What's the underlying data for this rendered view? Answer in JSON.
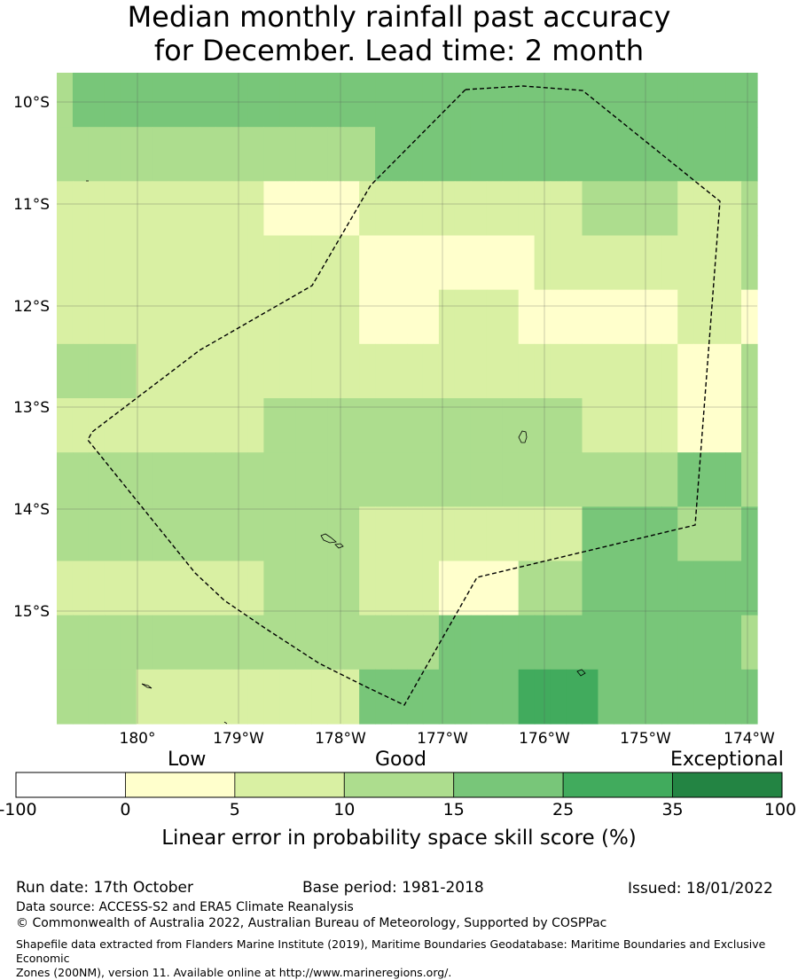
{
  "title_line1": "Median monthly rainfall past accuracy",
  "title_line2": "for December. Lead time: 2 month",
  "map": {
    "lon_labels": [
      "180°",
      "179°W",
      "178°W",
      "177°W",
      "176°W",
      "175°W",
      "174°W"
    ],
    "lat_labels": [
      "10°S",
      "11°S",
      "12°S",
      "13°S",
      "14°S",
      "15°S"
    ],
    "grid_levels": [
      [
        2,
        3,
        3,
        3,
        3,
        3,
        3,
        3,
        3,
        3,
        3,
        3,
        3,
        3,
        3,
        3,
        3,
        3,
        3,
        3,
        3,
        3,
        3,
        3,
        3,
        3,
        3,
        3,
        3,
        3,
        3,
        3,
        3,
        3,
        3,
        3,
        3,
        3,
        3,
        3,
        3,
        3,
        3,
        3
      ],
      [
        2,
        2,
        2,
        2,
        2,
        2,
        2,
        2,
        2,
        2,
        2,
        2,
        2,
        2,
        2,
        2,
        2,
        2,
        2,
        2,
        3,
        3,
        3,
        3,
        3,
        3,
        3,
        3,
        3,
        3,
        3,
        3,
        3,
        3,
        3,
        3,
        3,
        3,
        3,
        3,
        3,
        3,
        3,
        3
      ],
      [
        1,
        1,
        1,
        1,
        1,
        1,
        1,
        1,
        1,
        1,
        1,
        1,
        1,
        0,
        0,
        0,
        0,
        0,
        0,
        1,
        1,
        1,
        1,
        1,
        1,
        1,
        1,
        1,
        1,
        1,
        1,
        1,
        1,
        2,
        2,
        2,
        2,
        2,
        2,
        1,
        1,
        1,
        1,
        2
      ],
      [
        1,
        1,
        1,
        1,
        1,
        1,
        1,
        1,
        1,
        1,
        1,
        1,
        1,
        1,
        1,
        1,
        1,
        1,
        1,
        0,
        0,
        0,
        0,
        0,
        0,
        0,
        0,
        0,
        0,
        0,
        1,
        1,
        1,
        1,
        1,
        1,
        1,
        1,
        1,
        1,
        1,
        1,
        1,
        2
      ],
      [
        1,
        1,
        1,
        1,
        1,
        1,
        1,
        1,
        1,
        1,
        1,
        1,
        1,
        1,
        1,
        1,
        1,
        1,
        1,
        0,
        0,
        0,
        0,
        0,
        1,
        1,
        1,
        1,
        1,
        0,
        0,
        0,
        0,
        0,
        0,
        0,
        0,
        0,
        0,
        1,
        1,
        1,
        1,
        0
      ],
      [
        2,
        2,
        2,
        2,
        2,
        1,
        1,
        1,
        1,
        1,
        1,
        1,
        1,
        1,
        1,
        1,
        1,
        1,
        1,
        1,
        1,
        1,
        1,
        1,
        1,
        1,
        1,
        1,
        1,
        1,
        1,
        1,
        1,
        1,
        1,
        1,
        1,
        1,
        1,
        0,
        0,
        0,
        0,
        2
      ],
      [
        1,
        1,
        1,
        1,
        1,
        1,
        1,
        1,
        1,
        1,
        1,
        1,
        1,
        2,
        2,
        2,
        2,
        2,
        2,
        2,
        2,
        2,
        2,
        2,
        2,
        2,
        2,
        2,
        2,
        2,
        2,
        2,
        2,
        1,
        1,
        1,
        1,
        1,
        1,
        0,
        0,
        0,
        0,
        2
      ],
      [
        2,
        2,
        2,
        2,
        2,
        2,
        2,
        2,
        2,
        2,
        2,
        2,
        2,
        2,
        2,
        2,
        2,
        2,
        2,
        2,
        2,
        2,
        2,
        2,
        2,
        2,
        2,
        2,
        2,
        2,
        2,
        2,
        2,
        2,
        2,
        2,
        2,
        2,
        2,
        3,
        3,
        3,
        3,
        2
      ],
      [
        2,
        2,
        2,
        2,
        2,
        2,
        2,
        2,
        2,
        2,
        2,
        2,
        2,
        2,
        2,
        2,
        2,
        2,
        2,
        1,
        1,
        1,
        1,
        1,
        1,
        1,
        1,
        1,
        1,
        1,
        1,
        1,
        1,
        3,
        3,
        3,
        3,
        3,
        3,
        2,
        2,
        2,
        2,
        3
      ],
      [
        1,
        1,
        1,
        1,
        1,
        1,
        1,
        1,
        1,
        1,
        1,
        1,
        1,
        2,
        2,
        2,
        2,
        2,
        2,
        1,
        1,
        1,
        1,
        1,
        0,
        0,
        0,
        0,
        0,
        2,
        2,
        2,
        2,
        3,
        3,
        3,
        3,
        3,
        3,
        3,
        3,
        3,
        3,
        3
      ],
      [
        2,
        2,
        2,
        2,
        2,
        2,
        2,
        2,
        2,
        2,
        2,
        2,
        2,
        2,
        2,
        2,
        2,
        2,
        2,
        2,
        2,
        2,
        2,
        2,
        3,
        3,
        3,
        3,
        3,
        3,
        3,
        3,
        3,
        3,
        3,
        3,
        3,
        3,
        3,
        3,
        3,
        3,
        3,
        2
      ],
      [
        2,
        2,
        2,
        2,
        2,
        1,
        1,
        1,
        1,
        1,
        1,
        1,
        1,
        1,
        1,
        1,
        1,
        1,
        1,
        3,
        3,
        3,
        3,
        3,
        3,
        3,
        3,
        3,
        3,
        4,
        4,
        4,
        4,
        4,
        3,
        3,
        3,
        3,
        3,
        3,
        3,
        3,
        3,
        3
      ]
    ],
    "level_colors": [
      "#ffffcc",
      "#d9f0a3",
      "#addd8e",
      "#78c679",
      "#41ab5d",
      "#238443"
    ]
  },
  "colorbar": {
    "low_label": "Low",
    "good_label": "Good",
    "exceptional_label": "Exceptional",
    "ticks": [
      "-100",
      "0",
      "5",
      "10",
      "15",
      "25",
      "35",
      "100"
    ],
    "colors": [
      "#ffffff",
      "#ffffcc",
      "#d9f0a3",
      "#addd8e",
      "#78c679",
      "#41ab5d",
      "#238443"
    ],
    "title": "Linear error in probability space skill score (%)"
  },
  "footer": {
    "run_date": "Run date: 17th October",
    "base_period": "Base period: 1981-2018",
    "issued": "Issued: 18/01/2022",
    "data_source": "Data source: ACCESS-S2 and ERA5 Climate Reanalysis",
    "copyright": "© Commonwealth of Australia 2022, Australian Bureau of Meteorology, Supported by COSPPac",
    "shapefile_line1": "Shapefile data extracted from Flanders Marine Institute (2019), Maritime Boundaries Geodatabase: Maritime Boundaries and Exclusive Economic",
    "shapefile_line2": "Zones (200NM), version 11. Available online at http://www.marineregions.org/."
  }
}
